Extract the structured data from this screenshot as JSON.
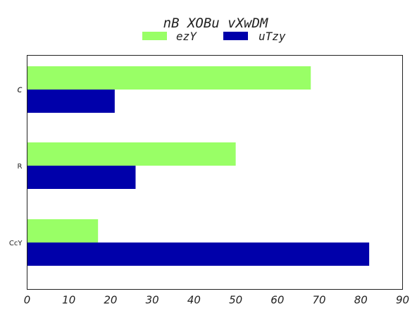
{
  "chart_data": {
    "type": "bar",
    "orientation": "horizontal",
    "title": "nB XOBu vXwDM",
    "xlabel": "",
    "ylabel": "",
    "categories": [
      "c",
      "R",
      "CcY"
    ],
    "series": [
      {
        "name": "ezY",
        "color": "#99ff66",
        "values": [
          68,
          50,
          17
        ]
      },
      {
        "name": "uTzy",
        "color": "#0000aa",
        "values": [
          21,
          26,
          82
        ]
      }
    ],
    "xlim": [
      0,
      90
    ],
    "xticks": [
      0,
      10,
      20,
      30,
      40,
      50,
      60,
      70,
      80,
      90
    ],
    "grid": false,
    "legend_position": "top-center"
  }
}
